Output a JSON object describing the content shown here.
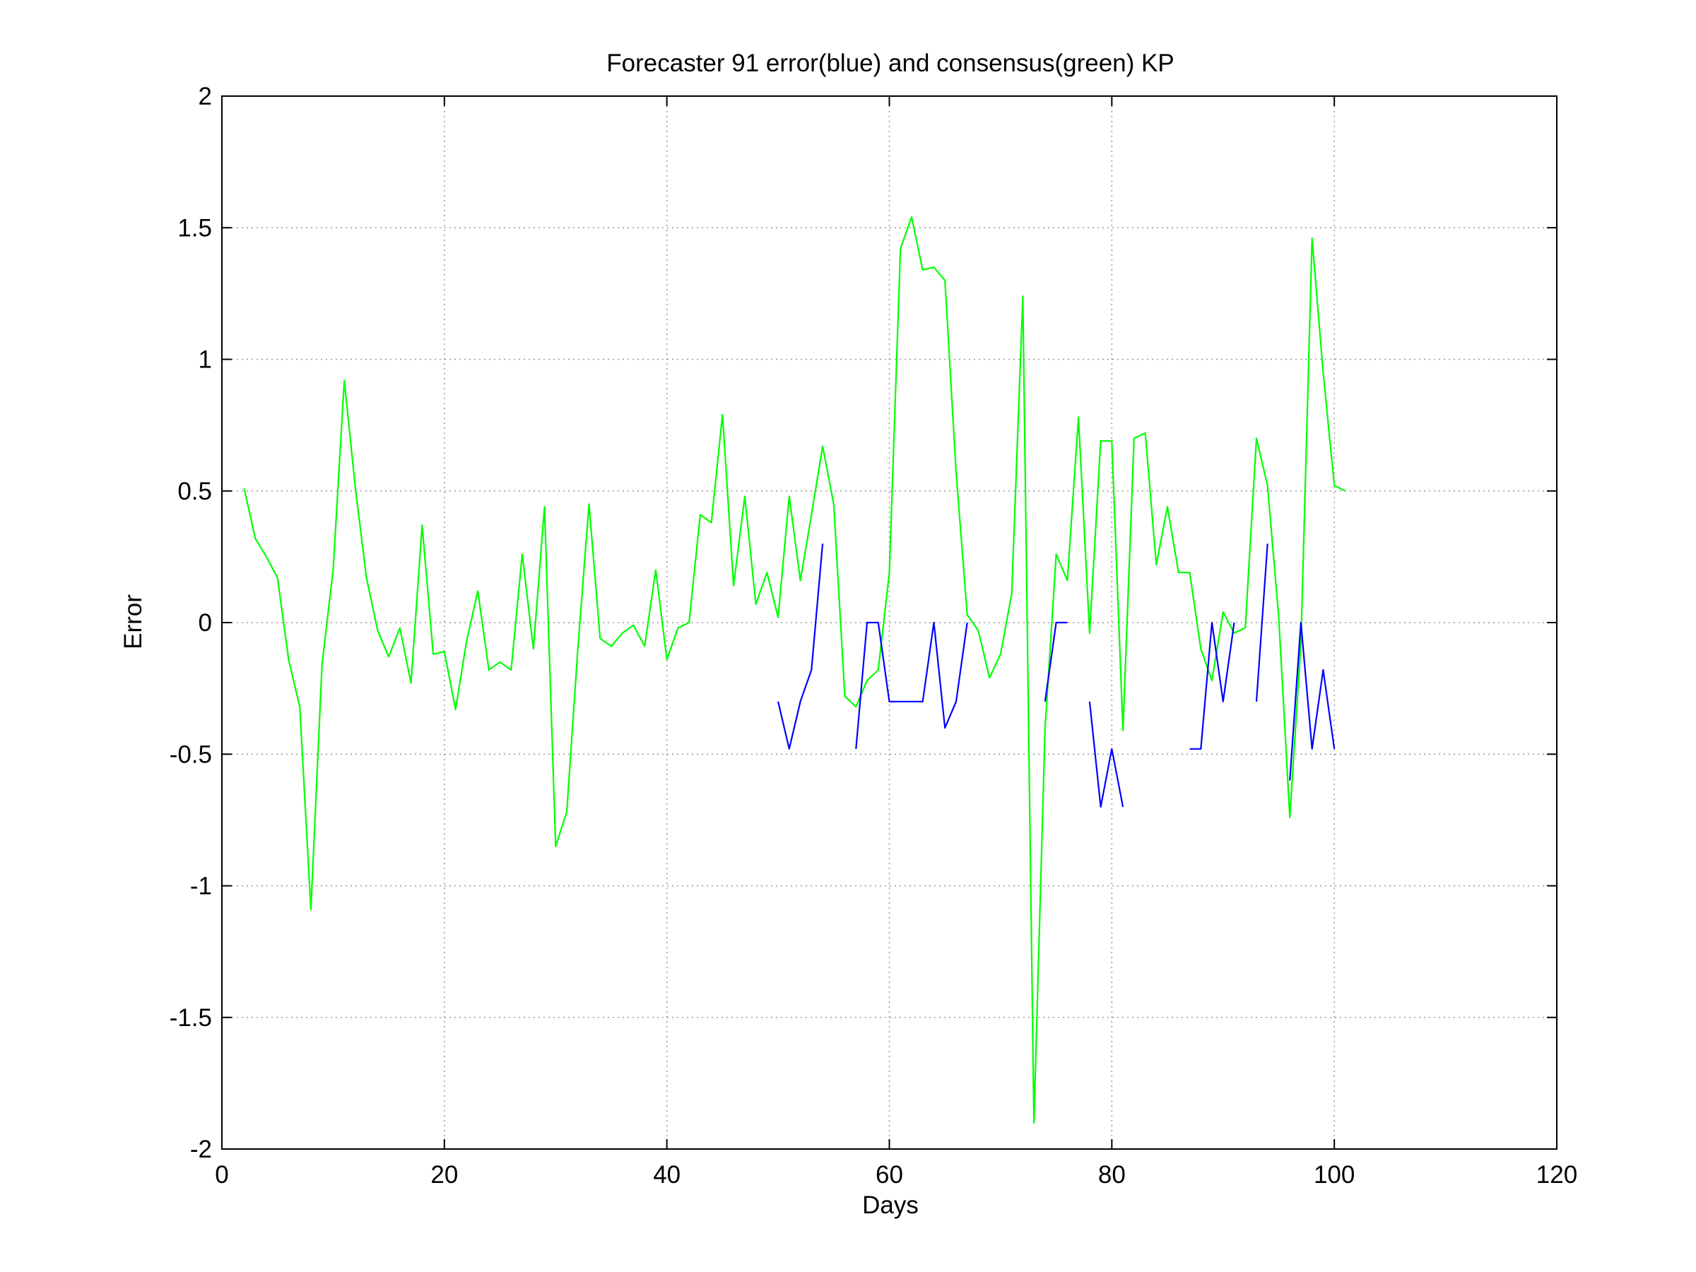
{
  "chart_data": {
    "type": "line",
    "title": "Forecaster 91 error(blue) and consensus(green)  KP",
    "xlabel": "Days",
    "ylabel": "Error",
    "xlim": [
      0,
      120
    ],
    "ylim": [
      -2,
      2
    ],
    "xticks": [
      0,
      20,
      40,
      60,
      80,
      100,
      120
    ],
    "yticks": [
      -2,
      -1.5,
      -1,
      -0.5,
      0,
      0.5,
      1,
      1.5,
      2
    ],
    "xtick_labels": [
      "0",
      "20",
      "40",
      "60",
      "80",
      "100",
      "120"
    ],
    "ytick_labels": [
      "-2",
      "-1.5",
      "-1",
      "-0.5",
      "0",
      "0.5",
      "1",
      "1.5",
      "2"
    ],
    "grid": true,
    "series": [
      {
        "color": "#00ff00",
        "x": [
          2,
          3,
          4,
          5,
          6,
          7,
          8,
          9,
          10,
          11,
          12,
          13,
          14,
          15,
          16,
          17,
          18,
          19,
          20,
          21,
          22,
          23,
          24,
          25,
          26,
          27,
          28,
          29,
          30,
          31,
          32,
          33,
          34,
          35,
          36,
          37,
          38,
          39,
          40,
          41,
          42,
          43,
          44,
          45,
          46,
          47,
          48,
          49,
          50,
          51,
          52,
          53,
          54,
          55,
          56,
          57,
          58,
          59,
          60,
          61,
          62,
          63,
          64,
          65,
          66,
          67,
          68,
          69,
          70,
          71,
          72,
          73,
          74,
          75,
          76,
          77,
          78,
          79,
          80,
          81,
          82,
          83,
          84,
          85,
          86,
          87,
          88,
          89,
          90,
          91,
          92,
          93,
          94,
          95,
          96,
          97,
          98,
          99,
          100,
          101
        ],
        "y": [
          0.51,
          0.32,
          0.25,
          0.17,
          -0.14,
          -0.32,
          -1.09,
          -0.16,
          0.2,
          0.92,
          0.51,
          0.17,
          -0.03,
          -0.13,
          -0.02,
          -0.23,
          0.37,
          -0.12,
          -0.11,
          -0.33,
          -0.07,
          0.12,
          -0.18,
          -0.15,
          -0.18,
          0.26,
          -0.1,
          0.44,
          -0.85,
          -0.72,
          -0.1,
          0.45,
          -0.06,
          -0.09,
          -0.04,
          -0.01,
          -0.09,
          0.2,
          -0.14,
          -0.02,
          0.0,
          0.41,
          0.38,
          0.79,
          0.14,
          0.48,
          0.07,
          0.19,
          0.02,
          0.48,
          0.16,
          0.41,
          0.67,
          0.45,
          -0.28,
          -0.32,
          -0.22,
          -0.18,
          0.19,
          1.42,
          1.54,
          1.34,
          1.35,
          1.3,
          0.57,
          0.03,
          -0.03,
          -0.21,
          -0.12,
          0.11,
          1.24,
          -1.9,
          -0.4,
          0.26,
          0.16,
          0.78,
          -0.04,
          0.69,
          0.69,
          -0.41,
          0.7,
          0.72,
          0.22,
          0.44,
          0.19,
          0.19,
          -0.1,
          -0.22,
          0.04,
          -0.04,
          -0.02,
          0.7,
          0.52,
          0.02,
          -0.74,
          -0.08,
          1.46,
          0.95,
          0.52,
          0.5
        ]
      },
      {
        "color": "#0000ff",
        "x": [
          50,
          51,
          52,
          53,
          54,
          null,
          57,
          58,
          59,
          60,
          61,
          62,
          63,
          64,
          65,
          66,
          67,
          null,
          74,
          75,
          76,
          null,
          78,
          79,
          80,
          81,
          null,
          87,
          88,
          89,
          90,
          91,
          null,
          93,
          94,
          null,
          96,
          97,
          98,
          99,
          100
        ],
        "y": [
          -0.3,
          -0.48,
          -0.3,
          -0.18,
          0.3,
          null,
          -0.48,
          0.0,
          0.0,
          -0.3,
          -0.3,
          -0.3,
          -0.3,
          0.0,
          -0.4,
          -0.3,
          0.0,
          null,
          -0.3,
          0.0,
          0.0,
          null,
          -0.3,
          -0.7,
          -0.48,
          -0.7,
          null,
          -0.48,
          -0.48,
          0.0,
          -0.3,
          0.0,
          null,
          -0.3,
          0.3,
          null,
          -0.6,
          0.0,
          -0.48,
          -0.18,
          -0.48
        ]
      }
    ]
  }
}
